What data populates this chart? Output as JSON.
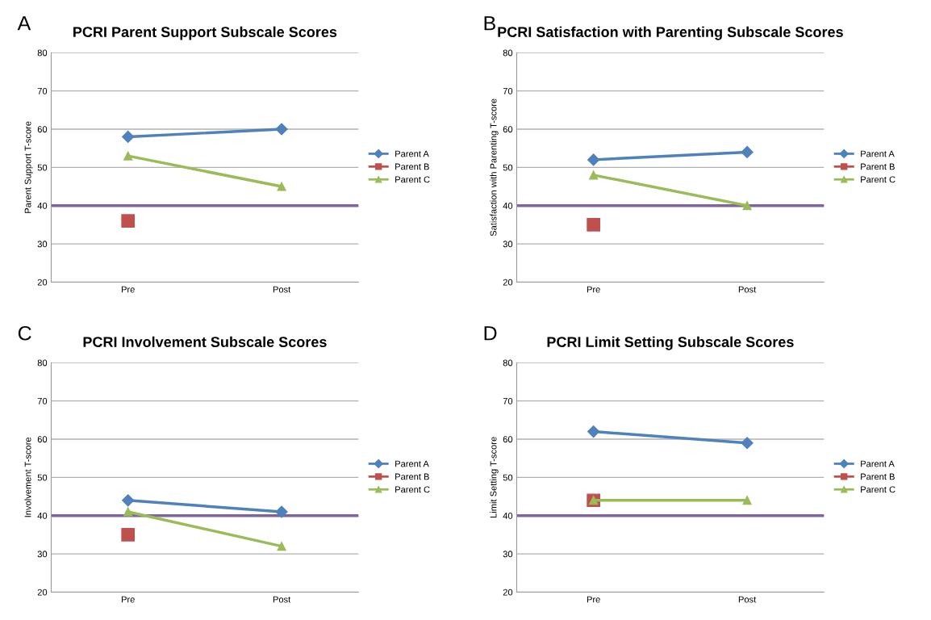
{
  "chart_data": [
    {
      "type": "line",
      "title": "PCRI Parent Support Subscale Scores",
      "ylabel": "Parent Support T-score",
      "annotations": [
        "A"
      ],
      "categories": [
        "Pre",
        "Post"
      ],
      "ylim": [
        20,
        80
      ],
      "yticks": [
        20,
        30,
        40,
        50,
        60,
        70,
        80
      ],
      "grid": "y",
      "legend": "right",
      "ref_lines": [
        {
          "axis": "y",
          "value": 40,
          "color": "#8064a2"
        }
      ],
      "series": [
        {
          "name": "Parent A",
          "color": "#4f81bd",
          "marker": "diamond",
          "values": [
            58,
            60
          ]
        },
        {
          "name": "Parent B",
          "color": "#c0504d",
          "marker": "square",
          "values": [
            36,
            null
          ]
        },
        {
          "name": "Parent C",
          "color": "#9bbb59",
          "marker": "triangle",
          "values": [
            53,
            45
          ]
        }
      ]
    },
    {
      "type": "line",
      "title": "PCRI Satisfaction with Parenting Subscale Scores",
      "ylabel": "Satisfaction with Parenting T-score",
      "annotations": [
        "B"
      ],
      "categories": [
        "Pre",
        "Post"
      ],
      "ylim": [
        20,
        80
      ],
      "yticks": [
        20,
        30,
        40,
        50,
        60,
        70,
        80
      ],
      "grid": "y",
      "legend": "right",
      "ref_lines": [
        {
          "axis": "y",
          "value": 40,
          "color": "#8064a2"
        }
      ],
      "series": [
        {
          "name": "Parent A",
          "color": "#4f81bd",
          "marker": "diamond",
          "values": [
            52,
            54
          ]
        },
        {
          "name": "Parent B",
          "color": "#c0504d",
          "marker": "square",
          "values": [
            35,
            null
          ]
        },
        {
          "name": "Parent C",
          "color": "#9bbb59",
          "marker": "triangle",
          "values": [
            48,
            40
          ]
        }
      ]
    },
    {
      "type": "line",
      "title": "PCRI Involvement Subscale Scores",
      "ylabel": "Involvement T-score",
      "annotations": [
        "C"
      ],
      "categories": [
        "Pre",
        "Post"
      ],
      "ylim": [
        20,
        80
      ],
      "yticks": [
        20,
        30,
        40,
        50,
        60,
        70,
        80
      ],
      "grid": "y",
      "legend": "right",
      "ref_lines": [
        {
          "axis": "y",
          "value": 40,
          "color": "#8064a2"
        }
      ],
      "series": [
        {
          "name": "Parent A",
          "color": "#4f81bd",
          "marker": "diamond",
          "values": [
            44,
            41
          ]
        },
        {
          "name": "Parent B",
          "color": "#c0504d",
          "marker": "square",
          "values": [
            35,
            null
          ]
        },
        {
          "name": "Parent C",
          "color": "#9bbb59",
          "marker": "triangle",
          "values": [
            41,
            32
          ]
        }
      ]
    },
    {
      "type": "line",
      "title": "PCRI Limit Setting Subscale Scores",
      "ylabel": "Limit Setting T-score",
      "annotations": [
        "D"
      ],
      "categories": [
        "Pre",
        "Post"
      ],
      "ylim": [
        20,
        80
      ],
      "yticks": [
        20,
        30,
        40,
        50,
        60,
        70,
        80
      ],
      "grid": "y",
      "legend": "right",
      "ref_lines": [
        {
          "axis": "y",
          "value": 40,
          "color": "#8064a2"
        }
      ],
      "series": [
        {
          "name": "Parent A",
          "color": "#4f81bd",
          "marker": "diamond",
          "values": [
            62,
            59
          ]
        },
        {
          "name": "Parent B",
          "color": "#c0504d",
          "marker": "square",
          "values": [
            44,
            null
          ]
        },
        {
          "name": "Parent C",
          "color": "#9bbb59",
          "marker": "triangle",
          "values": [
            44,
            44
          ]
        }
      ]
    }
  ]
}
